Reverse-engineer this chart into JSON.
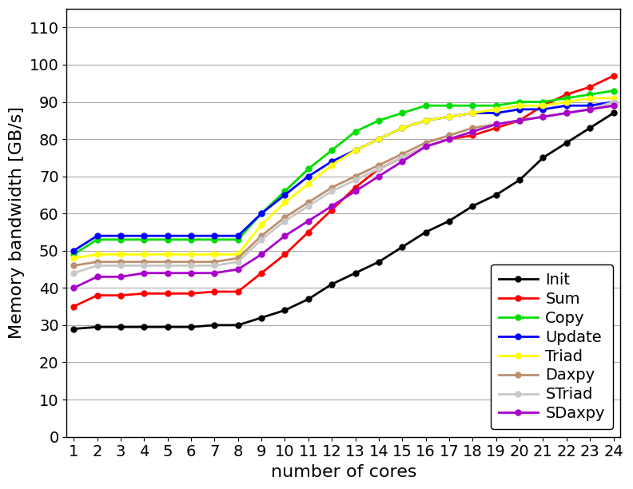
{
  "x": [
    1,
    2,
    3,
    4,
    5,
    6,
    7,
    8,
    9,
    10,
    11,
    12,
    13,
    14,
    15,
    16,
    17,
    18,
    19,
    20,
    21,
    22,
    23,
    24
  ],
  "series": {
    "Init": {
      "color": "#000000",
      "values": [
        29,
        29.5,
        29.5,
        29.5,
        29.5,
        29.5,
        30,
        30,
        32,
        34,
        37,
        41,
        44,
        47,
        51,
        55,
        58,
        62,
        65,
        69,
        75,
        79,
        83,
        87
      ]
    },
    "Sum": {
      "color": "#ff0000",
      "values": [
        35,
        38,
        38,
        38.5,
        38.5,
        38.5,
        39,
        39,
        44,
        49,
        55,
        61,
        67,
        72,
        75,
        78,
        80,
        81,
        83,
        85,
        89,
        92,
        94,
        97
      ]
    },
    "Copy": {
      "color": "#00dd00",
      "values": [
        49,
        53,
        53,
        53,
        53,
        53,
        53,
        53,
        60,
        66,
        72,
        77,
        82,
        85,
        87,
        89,
        89,
        89,
        89,
        90,
        90,
        91,
        92,
        93
      ]
    },
    "Update": {
      "color": "#0000ff",
      "values": [
        50,
        54,
        54,
        54,
        54,
        54,
        54,
        54,
        60,
        65,
        70,
        74,
        77,
        80,
        83,
        85,
        86,
        87,
        87,
        88,
        88,
        89,
        89,
        90
      ]
    },
    "Triad": {
      "color": "#ffff00",
      "values": [
        48,
        49,
        49,
        49,
        49,
        49,
        49,
        49,
        57,
        63,
        68,
        73,
        77,
        80,
        83,
        85,
        86,
        87,
        88,
        89,
        89,
        90,
        91,
        91
      ]
    },
    "Daxpy": {
      "color": "#bc8f6f",
      "values": [
        46,
        47,
        47,
        47,
        47,
        47,
        47,
        48,
        54,
        59,
        63,
        67,
        70,
        73,
        76,
        79,
        81,
        83,
        84,
        85,
        86,
        87,
        88,
        89
      ]
    },
    "STriad": {
      "color": "#c8c8c8",
      "values": [
        44,
        46,
        46,
        46,
        46,
        46,
        46,
        47,
        53,
        58,
        62,
        66,
        69,
        72,
        75,
        78,
        80,
        82,
        84,
        85,
        86,
        87,
        88,
        90
      ]
    },
    "SDaxpy": {
      "color": "#aa00cc",
      "values": [
        40,
        43,
        43,
        44,
        44,
        44,
        44,
        45,
        49,
        54,
        58,
        62,
        66,
        70,
        74,
        78,
        80,
        82,
        84,
        85,
        86,
        87,
        88,
        89
      ]
    }
  },
  "xlabel": "number of cores",
  "ylabel": "Memory bandwidth [GB/s]",
  "xlim_min": 0.7,
  "xlim_max": 24.3,
  "ylim": [
    0,
    115
  ],
  "yticks": [
    0,
    10,
    20,
    30,
    40,
    50,
    60,
    70,
    80,
    90,
    100,
    110
  ],
  "xticks": [
    1,
    2,
    3,
    4,
    5,
    6,
    7,
    8,
    9,
    10,
    11,
    12,
    13,
    14,
    15,
    16,
    17,
    18,
    19,
    20,
    21,
    22,
    23,
    24
  ],
  "legend_order": [
    "Init",
    "Sum",
    "Copy",
    "Update",
    "Triad",
    "Daxpy",
    "STriad",
    "SDaxpy"
  ],
  "background_color": "#ffffff",
  "marker": "o",
  "markersize": 5,
  "linewidth": 2.0,
  "figwidth": 7.92,
  "figheight": 6.12,
  "xlabel_fontsize": 16,
  "ylabel_fontsize": 16,
  "tick_fontsize": 14,
  "legend_fontsize": 14
}
